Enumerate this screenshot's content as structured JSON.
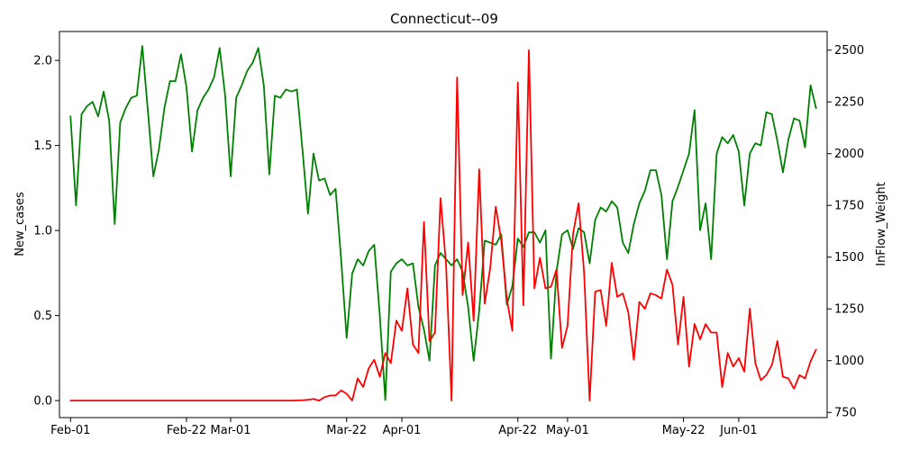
{
  "chart_data": {
    "type": "line",
    "title": "Connecticut--09",
    "xlabel": "",
    "ylabel_left": "New_cases",
    "ylabel_right": "InFlow_Weight",
    "x_range": [
      "2020-01-30",
      "2020-06-17"
    ],
    "x_ticks": [
      {
        "date": "2020-02-01",
        "label": "Feb-01"
      },
      {
        "date": "2020-02-22",
        "label": "Feb-22"
      },
      {
        "date": "2020-03-01",
        "label": "Mar-01"
      },
      {
        "date": "2020-03-22",
        "label": "Mar-22"
      },
      {
        "date": "2020-04-01",
        "label": "Apr-01"
      },
      {
        "date": "2020-04-22",
        "label": "Apr-22"
      },
      {
        "date": "2020-05-01",
        "label": "May-01"
      },
      {
        "date": "2020-05-22",
        "label": "May-22"
      },
      {
        "date": "2020-06-01",
        "label": "Jun-01"
      }
    ],
    "ylim_left": [
      -0.1,
      2.17
    ],
    "ylim_right": [
      725,
      2590
    ],
    "y_ticks_left": [
      0.0,
      0.5,
      1.0,
      1.5,
      2.0
    ],
    "y_tick_labels_left": [
      "0.0",
      "0.5",
      "1.0",
      "1.5",
      "2.0"
    ],
    "y_ticks_right": [
      750,
      1000,
      1250,
      1500,
      1750,
      2000,
      2250,
      2500
    ],
    "y_tick_labels_right": [
      "750",
      "1000",
      "1250",
      "1500",
      "1750",
      "2000",
      "2250",
      "2500"
    ],
    "grid": false,
    "series": [
      {
        "axis": "left",
        "color": "#ff0000",
        "start_date": "2020-02-01",
        "values": [
          0,
          0,
          0,
          0,
          0,
          0,
          0,
          0,
          0,
          0,
          0,
          0,
          0,
          0,
          0,
          0,
          0,
          0,
          0,
          0,
          0,
          0,
          0,
          0,
          0,
          0,
          0,
          0,
          0,
          0,
          0,
          0,
          0,
          0,
          0,
          0,
          0,
          0,
          0,
          0,
          0,
          0.001,
          0.002,
          0.005,
          0.01,
          0.0,
          0.02,
          0.03,
          0.03,
          0.06,
          0.04,
          0.0,
          0.13,
          0.08,
          0.19,
          0.24,
          0.14,
          0.28,
          0.22,
          0.47,
          0.41,
          0.66,
          0.33,
          0.28,
          1.05,
          0.35,
          0.4,
          1.19,
          0.8,
          0.0,
          1.9,
          0.62,
          0.93,
          0.47,
          1.36,
          0.57,
          0.78,
          1.14,
          0.94,
          0.6,
          0.41,
          1.87,
          0.56,
          2.06,
          0.66,
          0.84,
          0.66,
          0.67,
          0.77,
          0.31,
          0.44,
          0.98,
          1.16,
          0.75,
          0.0,
          0.64,
          0.65,
          0.44,
          0.81,
          0.61,
          0.63,
          0.52,
          0.24,
          0.58,
          0.54,
          0.63,
          0.62,
          0.6,
          0.77,
          0.68,
          0.33,
          0.61,
          0.2,
          0.45,
          0.36,
          0.45,
          0.4,
          0.4,
          0.08,
          0.28,
          0.2,
          0.25,
          0.17,
          0.54,
          0.22,
          0.12,
          0.15,
          0.21,
          0.35,
          0.14,
          0.13,
          0.07,
          0.15,
          0.13,
          0.23,
          0.3
        ]
      },
      {
        "axis": "right",
        "color": "#008000",
        "start_date": "2020-02-01",
        "values": [
          2180,
          1750,
          2190,
          2230,
          2250,
          2180,
          2300,
          2160,
          1660,
          2150,
          2220,
          2270,
          2280,
          2520,
          2210,
          1890,
          2020,
          2220,
          2350,
          2350,
          2480,
          2320,
          2010,
          2210,
          2270,
          2310,
          2370,
          2510,
          2280,
          1890,
          2270,
          2330,
          2400,
          2440,
          2510,
          2330,
          1900,
          2280,
          2270,
          2310,
          2300,
          2310,
          2020,
          1710,
          2000,
          1870,
          1880,
          1800,
          1830,
          1490,
          1110,
          1420,
          1490,
          1460,
          1530,
          1560,
          1220,
          810,
          1430,
          1470,
          1490,
          1460,
          1470,
          1260,
          1150,
          1000,
          1460,
          1520,
          1490,
          1460,
          1490,
          1430,
          1260,
          1000,
          1240,
          1580,
          1570,
          1560,
          1610,
          1270,
          1360,
          1590,
          1550,
          1620,
          1620,
          1570,
          1630,
          1010,
          1430,
          1610,
          1630,
          1540,
          1640,
          1620,
          1470,
          1680,
          1740,
          1720,
          1770,
          1740,
          1570,
          1520,
          1660,
          1760,
          1820,
          1920,
          1920,
          1800,
          1490,
          1770,
          1840,
          1920,
          2000,
          2210,
          1630,
          1760,
          1490,
          2000,
          2080,
          2050,
          2090,
          2010,
          1750,
          2000,
          2050,
          2040,
          2200,
          2190,
          2060,
          1910,
          2070,
          2170,
          2160,
          2030,
          2330,
          2220
        ]
      }
    ]
  }
}
